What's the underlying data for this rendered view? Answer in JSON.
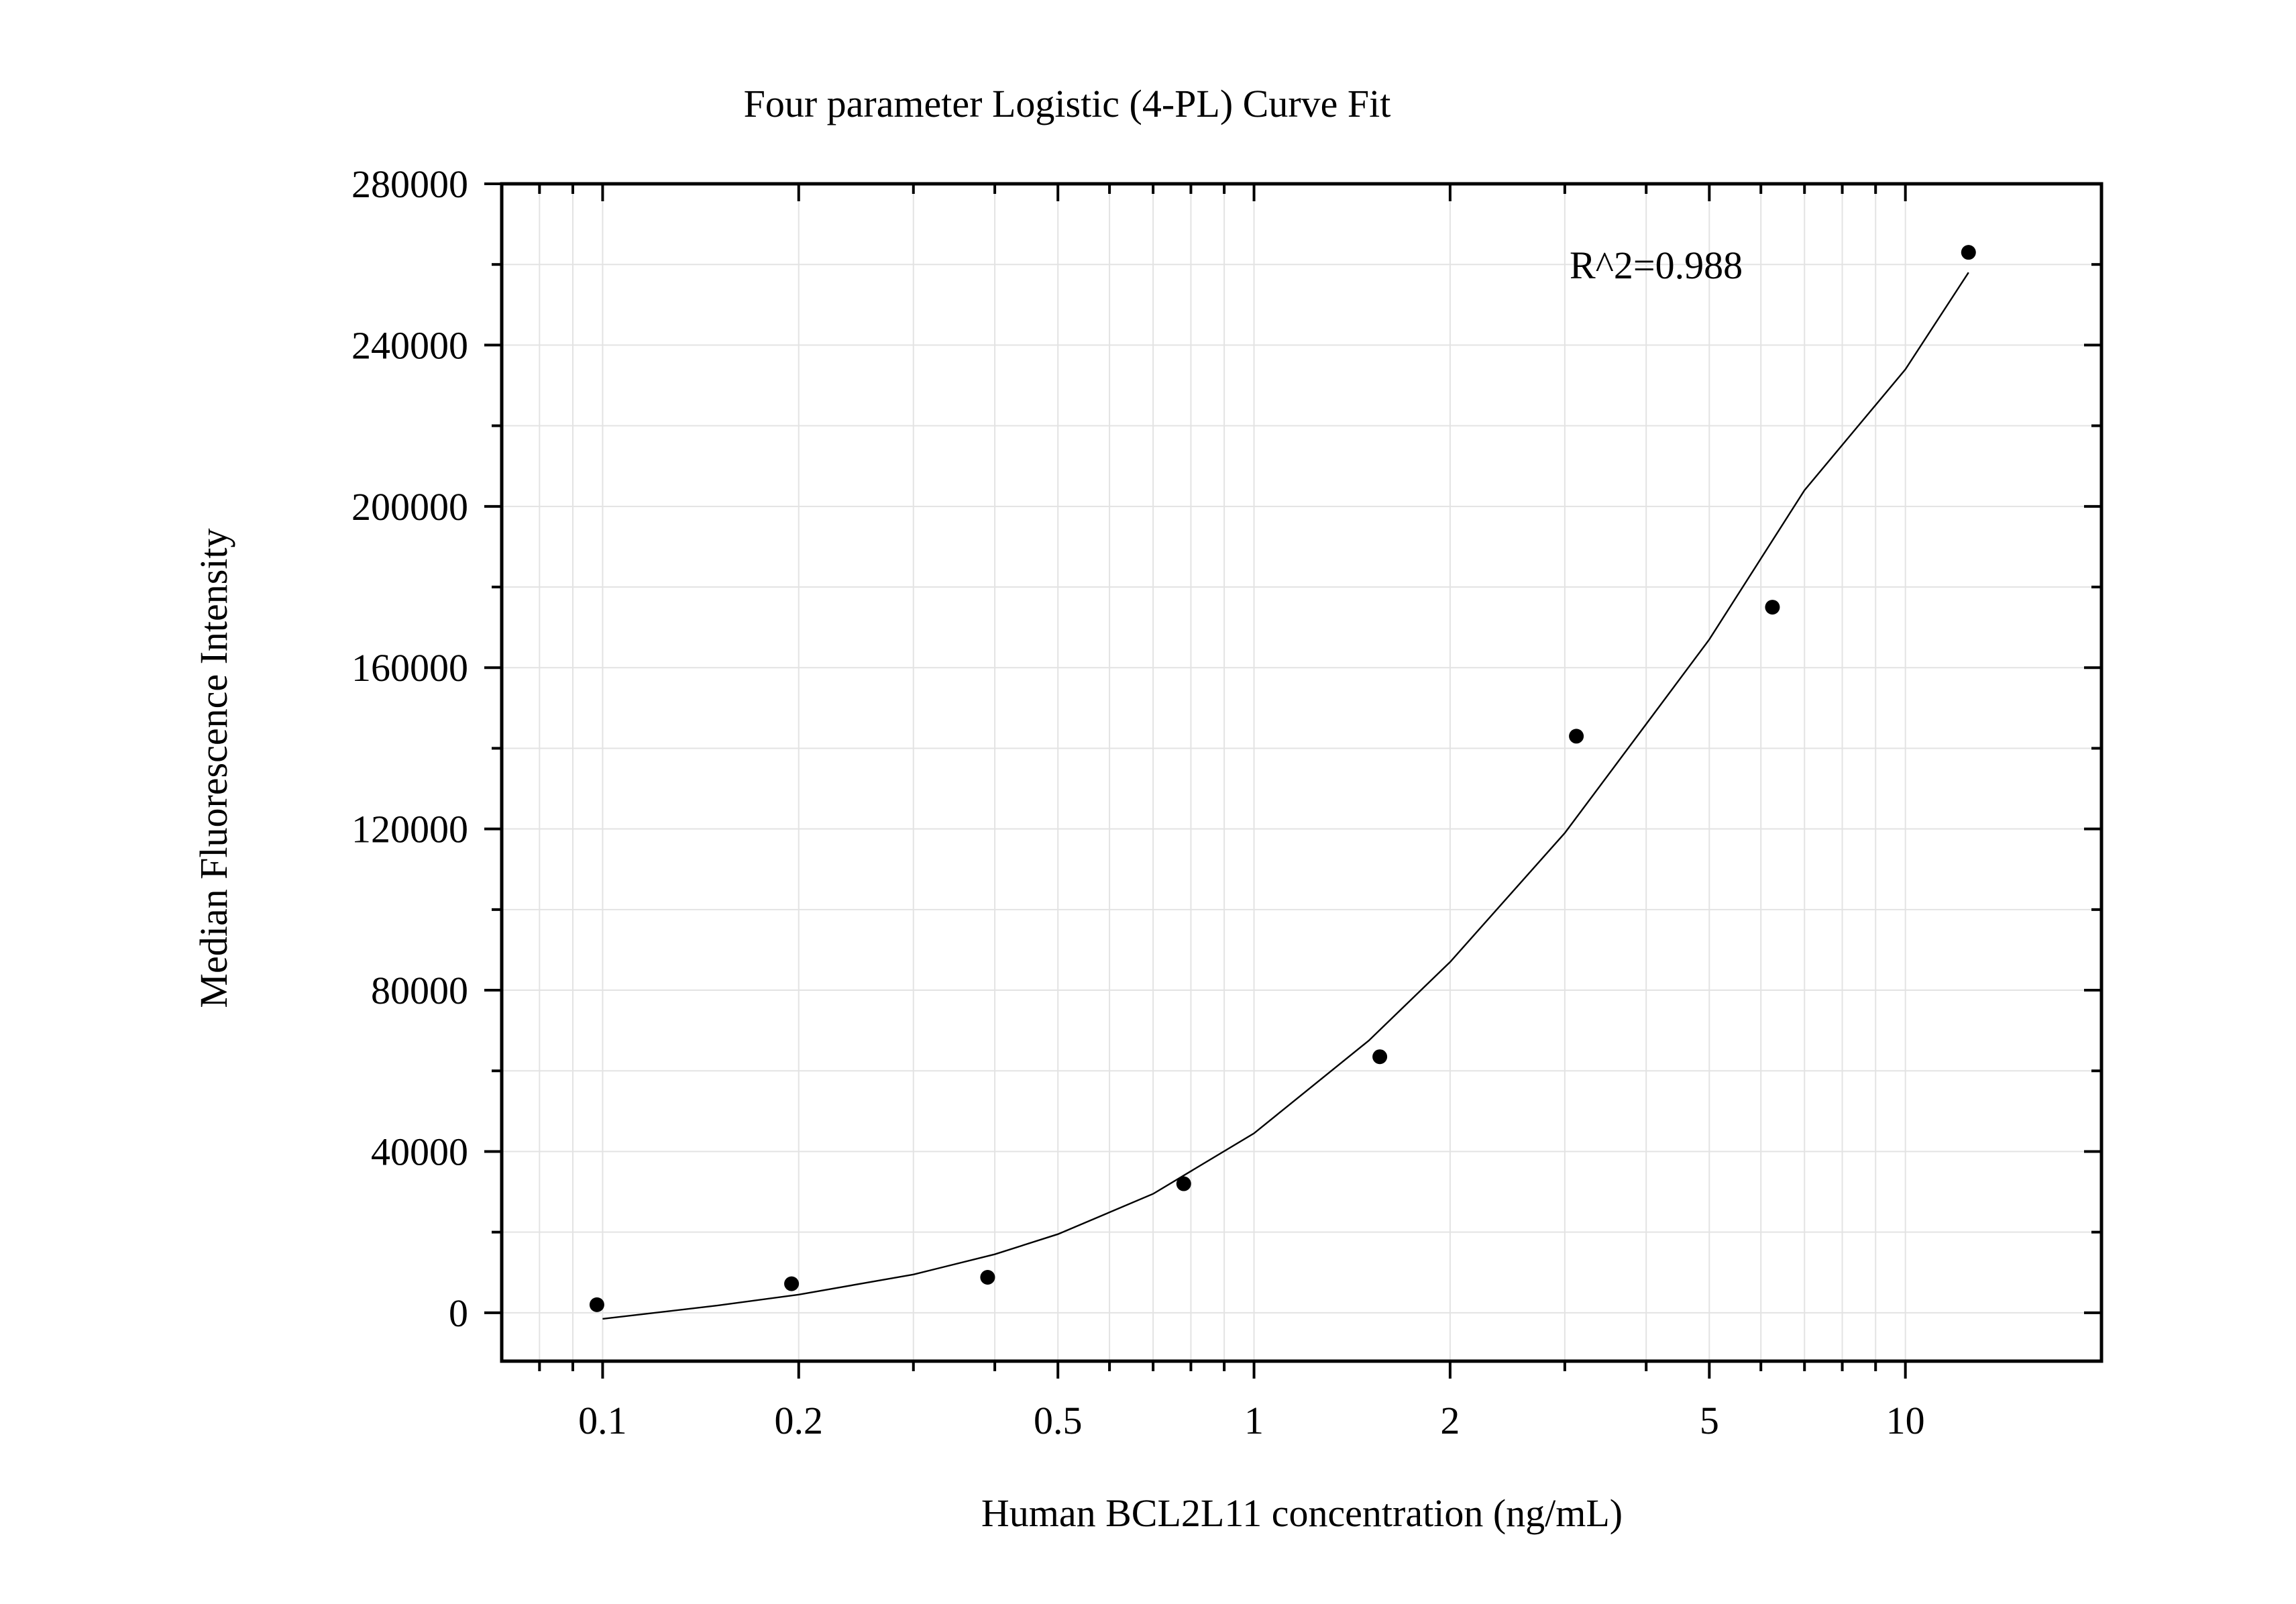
{
  "chart_data": {
    "type": "scatter",
    "title": "Four parameter Logistic (4-PL) Curve Fit",
    "xlabel": "Human BCL2L11 concentration (ng/mL)",
    "ylabel": "Median Fluorescence Intensity",
    "x_scale": "log10",
    "xlim": [
      0.07,
      20
    ],
    "ylim": [
      -12000,
      280000
    ],
    "x_ticks": [
      0.1,
      0.2,
      0.5,
      1,
      2,
      5,
      10
    ],
    "x_tick_labels": [
      "0.1",
      "0.2",
      "0.5",
      "1",
      "2",
      "5",
      "10"
    ],
    "y_ticks": [
      0,
      40000,
      80000,
      120000,
      160000,
      200000,
      240000,
      280000
    ],
    "y_tick_labels": [
      "0",
      "40000",
      "80000",
      "120000",
      "160000",
      "200000",
      "240000",
      "280000"
    ],
    "grid": true,
    "annotation": "R^2=0.988",
    "series": [
      {
        "kind": "points",
        "x": [
          0.098,
          0.195,
          0.39,
          0.78,
          1.56,
          3.125,
          6.25,
          12.5
        ],
        "y": [
          2000,
          7200,
          8800,
          32000,
          63500,
          143000,
          175000,
          263000
        ]
      },
      {
        "kind": "fit-line",
        "x": [
          0.1,
          0.15,
          0.2,
          0.3,
          0.4,
          0.5,
          0.7,
          1,
          1.5,
          2,
          3,
          4,
          5,
          7,
          10,
          12.5
        ],
        "y": [
          -1500,
          1800,
          4500,
          9500,
          14500,
          19500,
          29500,
          44500,
          67500,
          87000,
          119000,
          146000,
          167000,
          204000,
          234000,
          258000
        ]
      }
    ]
  }
}
